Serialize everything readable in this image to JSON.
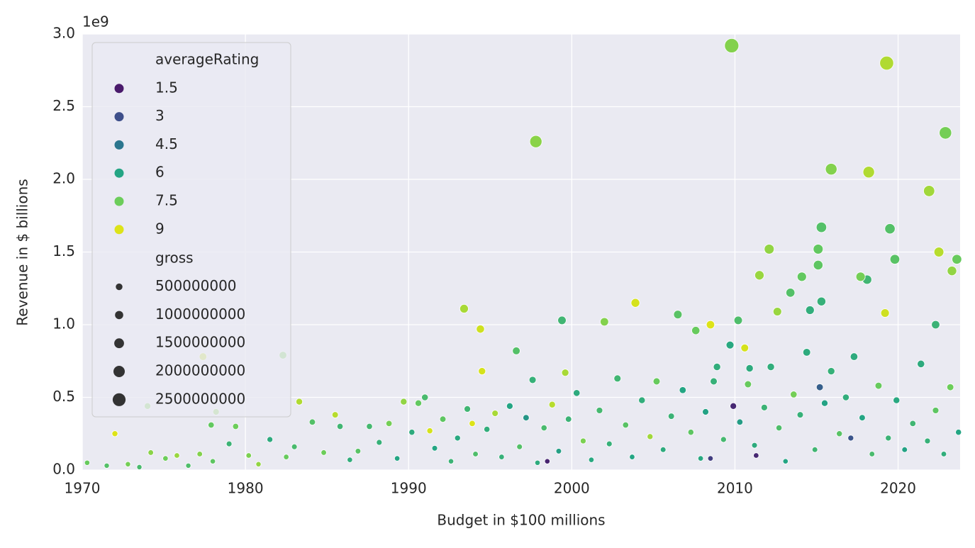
{
  "chart_data": {
    "type": "scatter",
    "x_label": "Budget in $100 millions",
    "y_label": "Revenue in $ billions",
    "y_offset_label": "1e9",
    "xlim": [
      1970,
      2023.8
    ],
    "ylim": [
      0,
      3000000000.0
    ],
    "xticks": [
      1970,
      1980,
      1990,
      2000,
      2010,
      2020
    ],
    "yticks": [
      {
        "value": 0,
        "label": "0.0"
      },
      {
        "value": 500000000.0,
        "label": "0.5"
      },
      {
        "value": 1000000000.0,
        "label": "1.0"
      },
      {
        "value": 1500000000.0,
        "label": "1.5"
      },
      {
        "value": 2000000000.0,
        "label": "2.0"
      },
      {
        "value": 2500000000.0,
        "label": "2.5"
      },
      {
        "value": 3000000000.0,
        "label": "3.0"
      }
    ],
    "grid": true,
    "legend_position": "upper left",
    "hue_legend": {
      "title": "averageRating",
      "values": [
        1.5,
        3.0,
        4.5,
        6.0,
        7.5,
        9.0
      ],
      "colors": [
        "#4a1a6b",
        "#3e4f8a",
        "#2b768e",
        "#24a584",
        "#6ccd5a",
        "#dde318"
      ]
    },
    "size_legend": {
      "title": "gross",
      "values": [
        500000000,
        1000000000,
        1500000000,
        2000000000,
        2500000000
      ]
    },
    "x": [
      1970.3,
      1971.5,
      1972.8,
      1973.5,
      1974.2,
      1975.1,
      1975.8,
      1976.5,
      1977.2,
      1978.0,
      1979.0,
      1980.2,
      1980.8,
      1981.5,
      1982.5,
      1983.0,
      1984.1,
      1984.8,
      1985.8,
      1986.4,
      1986.9,
      1987.6,
      1988.2,
      1988.8,
      1989.3,
      1989.7,
      1990.2,
      1990.6,
      1991.0,
      1991.6,
      1992.1,
      1992.6,
      1993.0,
      1993.6,
      1994.1,
      1994.8,
      1995.3,
      1995.7,
      1996.2,
      1996.8,
      1997.2,
      1997.9,
      1998.3,
      1998.8,
      1999.2,
      1999.8,
      2000.3,
      2000.7,
      2001.2,
      2001.7,
      2002.3,
      2002.8,
      2003.3,
      2003.7,
      2004.3,
      2004.8,
      2005.2,
      2005.6,
      2006.1,
      2006.8,
      2007.3,
      2007.9,
      2008.2,
      2008.7,
      2009.3,
      2009.7,
      2010.3,
      2010.8,
      2011.2,
      2011.8,
      2012.2,
      2012.7,
      2013.1,
      2013.6,
      2014.0,
      2014.4,
      2014.9,
      2015.5,
      2015.9,
      2016.4,
      2016.8,
      2017.3,
      2017.8,
      2018.4,
      2018.8,
      2019.4,
      2019.9,
      2020.4,
      2020.9,
      2021.4,
      2021.8,
      2022.3,
      2022.8,
      2023.2,
      2023.7,
      2009.9,
      2011.3,
      1998.5,
      2008.5,
      2015.2,
      2017.1,
      1972.0,
      1974.0,
      1978.2,
      1977.9,
      1979.4,
      1985.5,
      1991.3,
      1993.9,
      1997.6,
      2008.9,
      2010.9,
      2007.6,
      2012.6,
      1983.3,
      1999.6,
      1994.5,
      2010.6,
      2006.5,
      2022.3,
      1977.4,
      1982.3,
      1996.6,
      1994.4,
      2010.2,
      2008.5,
      2002.0,
      1999.4,
      2019.2,
      2015.3,
      2014.6,
      2003.9,
      1993.4,
      2013.4,
      2014.1,
      2018.1,
      2017.7,
      2011.5,
      2023.3,
      2015.1,
      2023.6,
      2019.8,
      2022.5,
      2015.1,
      2012.1,
      2019.5,
      2015.3,
      2021.9,
      2018.2,
      2015.9,
      2022.9,
      1997.8,
      2019.3,
      2009.8
    ],
    "values": [
      50000000.0,
      30000000.0,
      40000000.0,
      20000000.0,
      120000000.0,
      80000000.0,
      100000000.0,
      30000000.0,
      110000000.0,
      60000000.0,
      180000000.0,
      100000000.0,
      40000000.0,
      210000000.0,
      90000000.0,
      160000000.0,
      330000000.0,
      120000000.0,
      300000000.0,
      70000000.0,
      130000000.0,
      300000000.0,
      190000000.0,
      320000000.0,
      80000000.0,
      470000000.0,
      260000000.0,
      460000000.0,
      500000000.0,
      150000000.0,
      350000000.0,
      60000000.0,
      220000000.0,
      420000000.0,
      110000000.0,
      280000000.0,
      390000000.0,
      90000000.0,
      440000000.0,
      160000000.0,
      360000000.0,
      50000000.0,
      290000000.0,
      450000000.0,
      130000000.0,
      350000000.0,
      530000000.0,
      200000000.0,
      70000000.0,
      410000000.0,
      180000000.0,
      630000000.0,
      310000000.0,
      90000000.0,
      480000000.0,
      230000000.0,
      610000000.0,
      140000000.0,
      370000000.0,
      550000000.0,
      260000000.0,
      80000000.0,
      400000000.0,
      610000000.0,
      210000000.0,
      860000000.0,
      330000000.0,
      590000000.0,
      170000000.0,
      430000000.0,
      710000000.0,
      290000000.0,
      60000000.0,
      520000000.0,
      380000000.0,
      810000000.0,
      140000000.0,
      460000000.0,
      680000000.0,
      250000000.0,
      500000000.0,
      780000000.0,
      360000000.0,
      110000000.0,
      580000000.0,
      220000000.0,
      480000000.0,
      140000000.0,
      320000000.0,
      730000000.0,
      200000000.0,
      410000000.0,
      110000000.0,
      570000000.0,
      260000000.0,
      440000000.0,
      100000000.0,
      60000000.0,
      80000000.0,
      570000000.0,
      220000000.0,
      250000000.0,
      440000000.0,
      400000000.0,
      310000000.0,
      300000000.0,
      380000000.0,
      270000000.0,
      320000000.0,
      620000000.0,
      710000000.0,
      700000000.0,
      960000000.0,
      1090000000.0,
      470000000.0,
      670000000.0,
      680000000.0,
      840000000.0,
      1070000000.0,
      1000000000.0,
      780000000.0,
      790000000.0,
      820000000.0,
      970000000.0,
      1030000000.0,
      1000000000.0,
      1020000000.0,
      1030000000.0,
      1080000000.0,
      1160000000.0,
      1100000000.0,
      1150000000.0,
      1110000000.0,
      1220000000.0,
      1330000000.0,
      1310000000.0,
      1330000000.0,
      1340000000.0,
      1370000000.0,
      1410000000.0,
      1450000000.0,
      1450000000.0,
      1500000000.0,
      1520000000.0,
      1520000000.0,
      1660000000.0,
      1670000000.0,
      1920000000.0,
      2050000000.0,
      2070000000.0,
      2320000000.0,
      2260000000.0,
      2800000000.0,
      2920000000.0
    ],
    "ratings": [
      7.4,
      7.0,
      7.6,
      6.8,
      7.9,
      7.5,
      8.1,
      6.9,
      7.8,
      7.2,
      6.5,
      7.7,
      8.0,
      6.2,
      7.4,
      6.8,
      7.0,
      7.5,
      6.6,
      6.3,
      7.1,
      6.7,
      6.4,
      7.6,
      6.0,
      8.0,
      6.2,
      7.3,
      6.8,
      6.0,
      7.2,
      6.5,
      6.1,
      6.6,
      6.9,
      6.3,
      8.3,
      6.4,
      6.0,
      7.0,
      5.5,
      6.2,
      6.8,
      8.5,
      5.8,
      6.5,
      6.2,
      7.7,
      6.1,
      6.7,
      6.4,
      6.6,
      7.1,
      6.0,
      6.3,
      8.2,
      7.4,
      6.2,
      6.5,
      6.0,
      7.2,
      6.1,
      5.9,
      6.4,
      6.7,
      6.1,
      5.7,
      7.4,
      6.2,
      6.5,
      6.3,
      6.9,
      6.0,
      7.6,
      6.4,
      6.2,
      6.6,
      5.9,
      6.4,
      7.1,
      6.3,
      6.2,
      6.0,
      6.8,
      7.4,
      6.5,
      6.1,
      5.9,
      6.6,
      6.2,
      6.4,
      7.2,
      6.3,
      7.5,
      6.0,
      1.9,
      1.9,
      1.8,
      2.5,
      3.6,
      3.2,
      9.0,
      7.7,
      7.8,
      7.3,
      7.5,
      8.5,
      8.9,
      9.0,
      6.4,
      6.3,
      6.2,
      7.4,
      8.1,
      8.4,
      8.3,
      8.9,
      8.9,
      7.1,
      6.5,
      8.6,
      7.6,
      7.0,
      8.8,
      6.9,
      9.0,
      7.8,
      6.6,
      8.8,
      6.4,
      6.3,
      8.9,
      8.3,
      7.0,
      7.3,
      6.6,
      7.6,
      8.1,
      8.0,
      7.2,
      7.4,
      7.1,
      8.5,
      7.3,
      8.0,
      7.0,
      7.0,
      8.2,
      8.4,
      7.8,
      7.6,
      7.9,
      8.4,
      7.8
    ]
  }
}
